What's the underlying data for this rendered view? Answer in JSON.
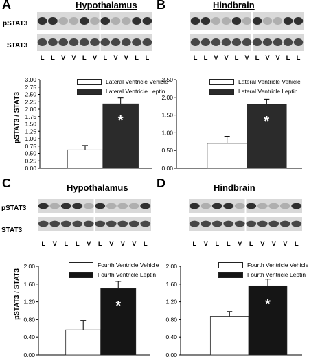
{
  "panels": [
    {
      "letter": "A",
      "region": "Hypothalamus",
      "blot_labels": [
        "pSTAT3",
        "STAT3"
      ],
      "lanes": [
        "L",
        "L",
        "V",
        "V",
        "L",
        "V",
        "L",
        "V",
        "V",
        "L",
        "L"
      ],
      "legend": [
        "Lateral Ventricle Vehicle",
        "Lateral Ventricle Leptin"
      ],
      "ylabel": "pSTAT3 / STAT3",
      "significance": "*"
    },
    {
      "letter": "B",
      "region": "Hindbrain",
      "blot_labels": [],
      "lanes": [
        "L",
        "L",
        "V",
        "V",
        "L",
        "V",
        "L",
        "V",
        "V",
        "L",
        "L"
      ],
      "legend": [
        "Lateral Ventricle Vehicle",
        "Lateral Ventricle Leptin"
      ],
      "ylabel": "",
      "significance": "*"
    },
    {
      "letter": "C",
      "region": "Hypothalamus",
      "blot_labels": [
        "pSTAT3",
        "STAT3"
      ],
      "lanes": [
        "L",
        "V",
        "L",
        "L",
        "V",
        "L",
        "V",
        "V",
        "V",
        "L"
      ],
      "legend": [
        "Fourth Ventricle Vehicle",
        "Fourth Ventricle Leptin"
      ],
      "ylabel": "pSTAT3 / STAT3",
      "significance": "*"
    },
    {
      "letter": "D",
      "region": "Hindbrain",
      "blot_labels": [],
      "lanes": [
        "L",
        "V",
        "L",
        "L",
        "V",
        "L",
        "V",
        "V",
        "V",
        "L"
      ],
      "legend": [
        "Fourth Ventricle Vehicle",
        "Fourth Ventricle Leptin"
      ],
      "ylabel": "",
      "significance": "*"
    }
  ],
  "colors": {
    "vehicle": "#ffffff",
    "leptin_lateral": "#2b2b2b",
    "leptin_fourth": "#151515",
    "axis": "#000000"
  },
  "chart_data": [
    {
      "type": "bar",
      "categories": [
        "Vehicle",
        "Leptin"
      ],
      "series": [
        {
          "name": "pSTAT3 / STAT3",
          "values": [
            0.62,
            2.18
          ],
          "errors": [
            0.15,
            0.2
          ]
        }
      ],
      "legend": [
        "Lateral Ventricle Vehicle",
        "Lateral Ventricle Leptin"
      ],
      "ylabel": "pSTAT3 / STAT3",
      "ylim": [
        0,
        3.0
      ],
      "yticks": [
        "0.00",
        "0.25",
        "0.50",
        "0.75",
        "1.00",
        "1.25",
        "1.50",
        "1.75",
        "2.00",
        "2.25",
        "2.50",
        "2.75",
        "3.00"
      ],
      "grid": false,
      "legend_position": "top"
    },
    {
      "type": "bar",
      "categories": [
        "Vehicle",
        "Leptin"
      ],
      "series": [
        {
          "name": "pSTAT3 / STAT3",
          "values": [
            0.7,
            1.8
          ],
          "errors": [
            0.2,
            0.15
          ]
        }
      ],
      "legend": [
        "Lateral Ventricle Vehicle",
        "Lateral Ventricle Leptin"
      ],
      "ylabel": "",
      "ylim": [
        0,
        2.5
      ],
      "yticks": [
        "0.00",
        "0.50",
        "1.00",
        "1.50",
        "2.00",
        "2.50"
      ],
      "grid": false,
      "legend_position": "top"
    },
    {
      "type": "bar",
      "categories": [
        "Vehicle",
        "Leptin"
      ],
      "series": [
        {
          "name": "pSTAT3 / STAT3",
          "values": [
            0.57,
            1.5
          ],
          "errors": [
            0.21,
            0.16
          ]
        }
      ],
      "legend": [
        "Fourth Ventricle Vehicle",
        "Fourth Ventricle Leptin"
      ],
      "ylabel": "pSTAT3 / STAT3",
      "ylim": [
        0,
        2.0
      ],
      "yticks": [
        "0.00",
        "0.40",
        "0.80",
        "1.20",
        "1.60",
        "2.00"
      ],
      "grid": false,
      "legend_position": "top"
    },
    {
      "type": "bar",
      "categories": [
        "Vehicle",
        "Leptin"
      ],
      "series": [
        {
          "name": "pSTAT3 / STAT3",
          "values": [
            0.86,
            1.56
          ],
          "errors": [
            0.12,
            0.15
          ]
        }
      ],
      "legend": [
        "Fourth Ventricle Vehicle",
        "Fourth Ventricle Leptin"
      ],
      "ylabel": "",
      "ylim": [
        0,
        2.0
      ],
      "yticks": [
        "0.00",
        "0.40",
        "0.80",
        "1.20",
        "1.60",
        "2.00"
      ],
      "grid": false,
      "legend_position": "top"
    }
  ]
}
